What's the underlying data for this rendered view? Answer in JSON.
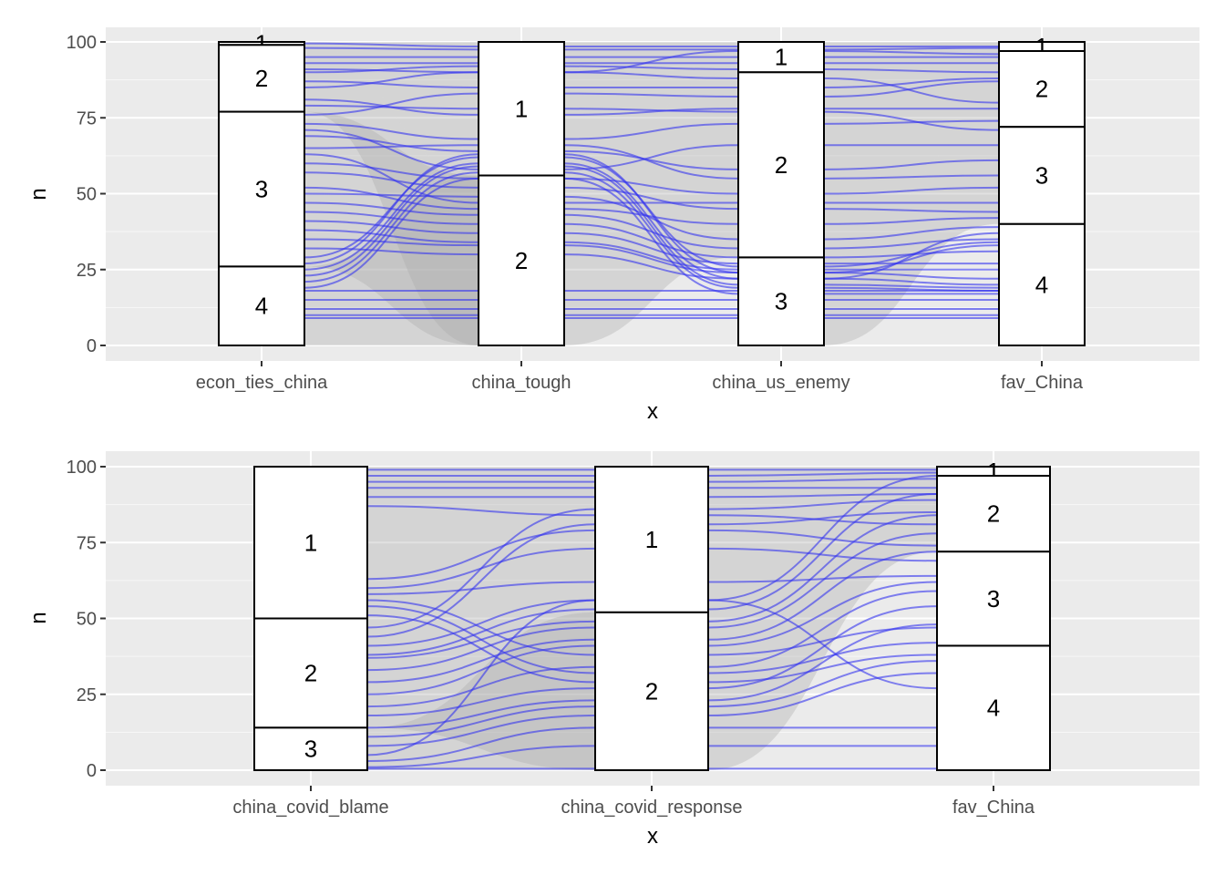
{
  "chart_data": [
    {
      "type": "alluvial",
      "xlabel": "x",
      "ylabel": "n",
      "ylim": [
        0,
        100
      ],
      "yticks": [
        0,
        25,
        50,
        75,
        100
      ],
      "grid": true,
      "flow_color": "#3333ee",
      "background": "#ebebeb",
      "axes": [
        {
          "name": "econ_ties_china",
          "strata": [
            {
              "label": "1",
              "lo": 99,
              "hi": 100
            },
            {
              "label": "2",
              "lo": 77,
              "hi": 99
            },
            {
              "label": "3",
              "lo": 26,
              "hi": 77
            },
            {
              "label": "4",
              "lo": 0,
              "hi": 26
            }
          ]
        },
        {
          "name": "china_tough",
          "strata": [
            {
              "label": "1",
              "lo": 56,
              "hi": 100
            },
            {
              "label": "2",
              "lo": 0,
              "hi": 56
            }
          ]
        },
        {
          "name": "china_us_enemy",
          "strata": [
            {
              "label": "1",
              "lo": 90,
              "hi": 100
            },
            {
              "label": "2",
              "lo": 29,
              "hi": 90
            },
            {
              "label": "3",
              "lo": 0,
              "hi": 29
            }
          ]
        },
        {
          "name": "fav_China",
          "strata": [
            {
              "label": "1",
              "lo": 97,
              "hi": 100
            },
            {
              "label": "2",
              "lo": 72,
              "hi": 97
            },
            {
              "label": "3",
              "lo": 40,
              "hi": 72
            },
            {
              "label": "4",
              "lo": 0,
              "hi": 40
            }
          ]
        }
      ],
      "flows": [
        [
          99.5,
          98.5,
          98.5,
          98.5
        ],
        [
          98,
          97.5,
          97.5,
          98
        ],
        [
          95,
          95,
          95,
          95
        ],
        [
          93,
          93,
          93,
          93
        ],
        [
          91,
          90,
          88,
          80
        ],
        [
          90,
          92,
          91,
          90
        ],
        [
          87,
          85,
          85,
          88
        ],
        [
          85,
          90,
          97,
          96
        ],
        [
          81,
          76,
          78,
          78
        ],
        [
          79,
          78,
          77,
          71
        ],
        [
          76,
          83,
          82,
          87
        ],
        [
          73,
          68,
          73,
          74
        ],
        [
          71,
          58,
          66,
          66
        ],
        [
          69,
          64,
          58,
          61
        ],
        [
          65,
          66,
          55,
          56
        ],
        [
          63,
          47,
          47,
          47
        ],
        [
          60,
          55,
          50,
          52
        ],
        [
          57,
          52,
          45,
          44
        ],
        [
          52,
          45,
          40,
          42
        ],
        [
          50,
          49,
          35,
          39
        ],
        [
          47,
          43,
          32,
          35
        ],
        [
          44,
          40,
          29,
          31
        ],
        [
          41,
          37,
          27,
          27
        ],
        [
          38,
          34,
          25,
          25
        ],
        [
          35,
          33,
          24,
          22
        ],
        [
          32,
          30,
          22,
          20
        ],
        [
          29,
          62,
          26,
          34
        ],
        [
          27,
          63,
          24,
          33
        ],
        [
          25,
          60,
          22,
          37
        ],
        [
          23,
          59,
          20,
          19
        ],
        [
          21,
          57,
          19,
          18
        ],
        [
          19,
          55,
          17,
          17
        ],
        [
          18,
          18,
          18,
          18
        ],
        [
          15,
          15,
          15,
          15
        ],
        [
          12,
          12,
          12,
          12
        ],
        [
          10,
          10,
          10,
          10
        ],
        [
          9,
          9,
          9,
          9
        ]
      ]
    },
    {
      "type": "alluvial",
      "xlabel": "x",
      "ylabel": "n",
      "ylim": [
        0,
        100
      ],
      "yticks": [
        0,
        25,
        50,
        75,
        100
      ],
      "grid": true,
      "flow_color": "#3333ee",
      "background": "#ebebeb",
      "axes": [
        {
          "name": "china_covid_blame",
          "strata": [
            {
              "label": "1",
              "lo": 50,
              "hi": 100
            },
            {
              "label": "2",
              "lo": 14,
              "hi": 50
            },
            {
              "label": "3",
              "lo": 0,
              "hi": 14
            }
          ]
        },
        {
          "name": "china_covid_response",
          "strata": [
            {
              "label": "1",
              "lo": 52,
              "hi": 100
            },
            {
              "label": "2",
              "lo": 0,
              "hi": 52
            }
          ]
        },
        {
          "name": "fav_China",
          "strata": [
            {
              "label": "1",
              "lo": 97,
              "hi": 100
            },
            {
              "label": "2",
              "lo": 72,
              "hi": 97
            },
            {
              "label": "3",
              "lo": 41,
              "hi": 72
            },
            {
              "label": "4",
              "lo": 0,
              "hi": 41
            }
          ]
        }
      ],
      "flows": [
        [
          99,
          99,
          99
        ],
        [
          97,
          97,
          98
        ],
        [
          95,
          95,
          96
        ],
        [
          93,
          93,
          93
        ],
        [
          90,
          90,
          91
        ],
        [
          87,
          84,
          81
        ],
        [
          63,
          79,
          74
        ],
        [
          60,
          73,
          69
        ],
        [
          58,
          62,
          64
        ],
        [
          56,
          38,
          47
        ],
        [
          54,
          32,
          42
        ],
        [
          51,
          29,
          38
        ],
        [
          47,
          86,
          89
        ],
        [
          44,
          81,
          85
        ],
        [
          41,
          56,
          97
        ],
        [
          38,
          53,
          91
        ],
        [
          37,
          49,
          84
        ],
        [
          33,
          47,
          78
        ],
        [
          29,
          43,
          72
        ],
        [
          25,
          41,
          62
        ],
        [
          21,
          34,
          59
        ],
        [
          18,
          27,
          54
        ],
        [
          14,
          23,
          48
        ],
        [
          11,
          21,
          36
        ],
        [
          8,
          18,
          32
        ],
        [
          5,
          56,
          27
        ],
        [
          3,
          14,
          14
        ],
        [
          1,
          8,
          8
        ],
        [
          0.5,
          0.5,
          0.5
        ]
      ]
    }
  ]
}
